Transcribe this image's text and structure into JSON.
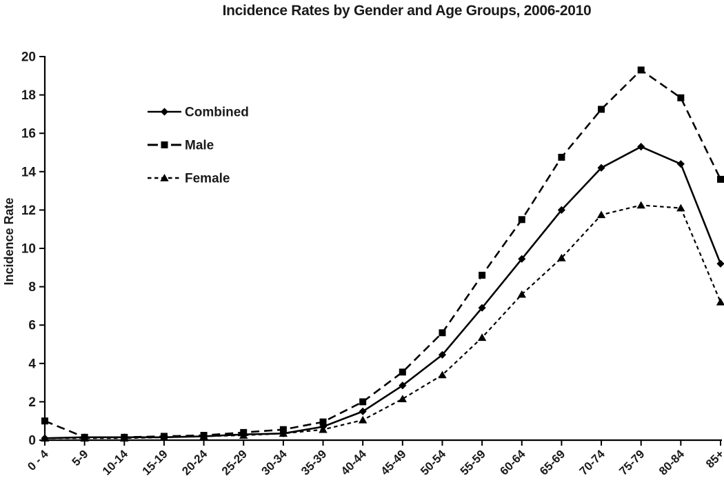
{
  "page": {
    "background": "#ffffff"
  },
  "chart_data": {
    "type": "line",
    "title": "Incidence Rates by Gender and Age Groups, 2006-2010",
    "xlabel": "",
    "ylabel": "Incidence Rate",
    "ylim": [
      0,
      20
    ],
    "ytick_step": 2,
    "grid": false,
    "legend_position": "inside-upper-left",
    "categories": [
      "0 - 4",
      "5-9",
      "10-14",
      "15-19",
      "20-24",
      "25-29",
      "30-34",
      "35-39",
      "40-44",
      "45-49",
      "50-54",
      "55-59",
      "60-64",
      "65-69",
      "70-74",
      "75-79",
      "80-84",
      "85+"
    ],
    "series": [
      {
        "name": "Combined",
        "marker": "diamond",
        "linestyle": "solid",
        "color": "#000000",
        "values": [
          0.1,
          0.15,
          0.15,
          0.15,
          0.2,
          0.3,
          0.35,
          0.7,
          1.5,
          2.85,
          4.45,
          6.9,
          9.45,
          12.0,
          14.2,
          15.3,
          14.4,
          9.2
        ]
      },
      {
        "name": "Male",
        "marker": "square",
        "linestyle": "long-dash",
        "color": "#000000",
        "values": [
          1.0,
          0.15,
          0.15,
          0.2,
          0.25,
          0.4,
          0.55,
          0.95,
          2.0,
          3.55,
          5.6,
          8.6,
          11.5,
          14.75,
          17.25,
          19.3,
          17.85,
          13.6
        ]
      },
      {
        "name": "Female",
        "marker": "triangle",
        "linestyle": "short-dash",
        "color": "#000000",
        "values": [
          0.1,
          0.1,
          0.1,
          0.15,
          0.2,
          0.25,
          0.35,
          0.55,
          1.05,
          2.15,
          3.4,
          5.35,
          7.6,
          9.5,
          11.75,
          12.25,
          12.1,
          7.2
        ]
      }
    ],
    "colors": {
      "axis": "#000000",
      "text": "#1a1a1a"
    }
  }
}
